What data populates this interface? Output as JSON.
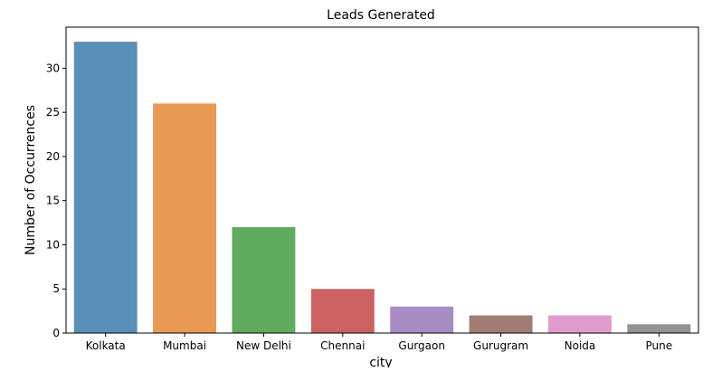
{
  "chart_data": {
    "type": "bar",
    "title": "Leads Generated",
    "xlabel": "city",
    "ylabel": "Number of Occurrences",
    "categories": [
      "Kolkata",
      "Mumbai",
      "New Delhi",
      "Chennai",
      "Gurgaon",
      "Gurugram",
      "Noida",
      "Pune"
    ],
    "values": [
      33,
      26,
      12,
      5,
      3,
      2,
      2,
      1
    ],
    "colors": [
      "#5a8fb7",
      "#e89a55",
      "#61ab5f",
      "#cc6262",
      "#a98cc3",
      "#a17c72",
      "#e09ccc",
      "#939393"
    ],
    "ylim": [
      0,
      34.65
    ],
    "yticks": [
      0,
      5,
      10,
      15,
      20,
      25,
      30
    ],
    "grid": false,
    "legend": "none"
  }
}
